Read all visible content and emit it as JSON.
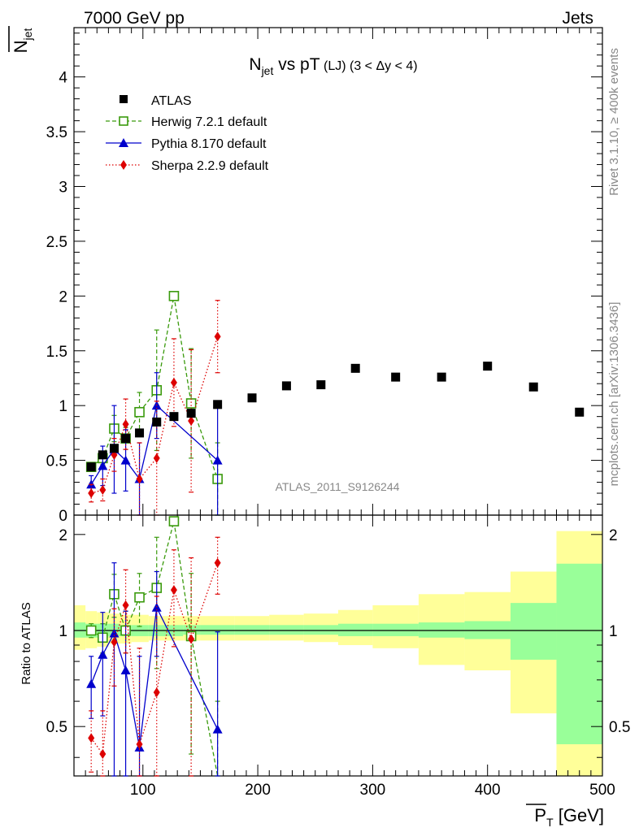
{
  "header": {
    "left": "7000 GeV pp",
    "right": "Jets"
  },
  "side_labels": {
    "rivet": "Rivet 3.1.10, ≥ 400k events",
    "mcplots": "mcplots.cern.ch [arXiv:1306.3436]"
  },
  "watermark": "ATLAS_2011_S9126244",
  "chart_data": [
    {
      "type": "scatter",
      "title": {
        "main": "N",
        "sub": "jet",
        "rest": " vs pT",
        "small": " (LJ) (3 < Δy < 4)"
      },
      "ylabel": {
        "main": "N",
        "sub": "jet"
      },
      "xlim": [
        40,
        500
      ],
      "ylim": [
        0,
        4.45
      ],
      "yticks": [
        "0",
        "0.5",
        "1",
        "1.5",
        "2",
        "2.5",
        "3",
        "3.5",
        "4"
      ],
      "legend": [
        "ATLAS",
        "Herwig 7.2.1 default",
        "Pythia 8.170 default",
        "Sherpa 2.2.9 default"
      ],
      "series": [
        {
          "name": "ATLAS",
          "color": "#000000",
          "marker": "square-filled",
          "x": [
            55,
            65,
            75,
            85,
            97,
            112,
            127,
            142,
            165,
            195,
            225,
            255,
            285,
            320,
            360,
            400,
            440,
            480
          ],
          "y": [
            0.44,
            0.55,
            0.61,
            0.7,
            0.75,
            0.85,
            0.9,
            0.93,
            1.01,
            1.07,
            1.18,
            1.19,
            1.34,
            1.26,
            1.26,
            1.36,
            1.17,
            0.94
          ]
        },
        {
          "name": "Herwig 7.2.1 default",
          "color": "#3a9a0c",
          "marker": "square-open",
          "line": "dashed",
          "x": [
            55,
            65,
            75,
            85,
            97,
            112,
            127,
            142,
            165
          ],
          "y": [
            0.44,
            0.52,
            0.79,
            0.7,
            0.94,
            1.14,
            2.0,
            1.02,
            0.33
          ],
          "yerr": [
            0.04,
            0.06,
            0.12,
            0.1,
            0.18,
            0.55,
            0.0,
            0.5,
            0.33
          ]
        },
        {
          "name": "Pythia 8.170 default",
          "color": "#0000cc",
          "marker": "triangle",
          "line": "solid",
          "x": [
            55,
            65,
            75,
            85,
            97,
            112,
            165
          ],
          "y": [
            0.28,
            0.45,
            0.6,
            0.5,
            0.33,
            1.0,
            0.5
          ],
          "yerr": [
            0.08,
            0.18,
            0.4,
            0.28,
            0.33,
            0.3,
            0.5
          ]
        },
        {
          "name": "Sherpa 2.2.9 default",
          "color": "#dd0000",
          "marker": "diamond",
          "line": "dotted",
          "x": [
            55,
            65,
            75,
            85,
            97,
            112,
            127,
            142,
            165
          ],
          "y": [
            0.2,
            0.23,
            0.55,
            0.83,
            0.33,
            0.52,
            1.21,
            0.86,
            1.63
          ],
          "yerr": [
            0.08,
            0.1,
            0.15,
            0.23,
            0.33,
            0.52,
            0.4,
            0.65,
            0.33
          ]
        }
      ]
    },
    {
      "type": "scatter",
      "ylabel": "Ratio to ATLAS",
      "xlabel": {
        "main": "P",
        "sub": "T",
        "rest": " [GeV]"
      },
      "xlim": [
        40,
        500
      ],
      "ylim": [
        0.35,
        2.3
      ],
      "xticks": [
        "100",
        "200",
        "300",
        "400",
        "500"
      ],
      "yticks": [
        "0.5",
        "1",
        "2"
      ],
      "band_bins": [
        40,
        50,
        60,
        70,
        80,
        90,
        105,
        120,
        135,
        150,
        180,
        210,
        240,
        270,
        300,
        340,
        380,
        420,
        460,
        500
      ],
      "band_green": [
        [
          0.95,
          1.06
        ],
        [
          0.95,
          1.05
        ],
        [
          0.95,
          1.05
        ],
        [
          0.96,
          1.05
        ],
        [
          0.96,
          1.04
        ],
        [
          0.96,
          1.04
        ],
        [
          0.96,
          1.04
        ],
        [
          0.96,
          1.04
        ],
        [
          0.97,
          1.04
        ],
        [
          0.97,
          1.04
        ],
        [
          0.97,
          1.04
        ],
        [
          0.97,
          1.04
        ],
        [
          0.97,
          1.04
        ],
        [
          0.96,
          1.05
        ],
        [
          0.96,
          1.05
        ],
        [
          0.95,
          1.06
        ],
        [
          0.94,
          1.07
        ],
        [
          0.81,
          1.22
        ],
        [
          0.44,
          1.62
        ]
      ],
      "band_yellow": [
        [
          0.87,
          1.2
        ],
        [
          0.88,
          1.15
        ],
        [
          0.89,
          1.14
        ],
        [
          0.91,
          1.13
        ],
        [
          0.91,
          1.12
        ],
        [
          0.92,
          1.12
        ],
        [
          0.93,
          1.11
        ],
        [
          0.93,
          1.11
        ],
        [
          0.93,
          1.11
        ],
        [
          0.93,
          1.11
        ],
        [
          0.93,
          1.11
        ],
        [
          0.93,
          1.12
        ],
        [
          0.92,
          1.13
        ],
        [
          0.9,
          1.16
        ],
        [
          0.88,
          1.2
        ],
        [
          0.78,
          1.3
        ],
        [
          0.75,
          1.32
        ],
        [
          0.55,
          1.53
        ],
        [
          0.35,
          2.05
        ]
      ],
      "series": [
        {
          "name": "Herwig 7.2.1 default",
          "color": "#3a9a0c",
          "marker": "square-open",
          "line": "dashed",
          "x": [
            55,
            65,
            75,
            85,
            97,
            112,
            127,
            142,
            165
          ],
          "y": [
            1.0,
            0.95,
            1.3,
            1.0,
            1.27,
            1.36,
            2.2,
            0.96,
            0.3
          ],
          "yerr": [
            0.05,
            0.1,
            0.2,
            0.15,
            0.24,
            0.6,
            0.0,
            0.55,
            0.3
          ]
        },
        {
          "name": "Pythia 8.170 default",
          "color": "#0000cc",
          "marker": "triangle",
          "line": "solid",
          "x": [
            55,
            65,
            75,
            85,
            97,
            112,
            165
          ],
          "y": [
            0.68,
            0.84,
            0.98,
            0.75,
            0.43,
            1.18,
            0.49
          ],
          "yerr": [
            0.15,
            0.3,
            0.65,
            0.4,
            0.4,
            0.35,
            0.5
          ]
        },
        {
          "name": "Sherpa 2.2.9 default",
          "color": "#dd0000",
          "marker": "diamond",
          "line": "dotted",
          "x": [
            55,
            65,
            75,
            85,
            97,
            112,
            127,
            142,
            165
          ],
          "y": [
            0.46,
            0.41,
            0.92,
            1.2,
            0.44,
            0.64,
            1.34,
            0.94,
            1.63
          ],
          "yerr": [
            0.1,
            0.15,
            0.25,
            0.35,
            0.44,
            0.64,
            0.45,
            0.75,
            0.33
          ]
        }
      ]
    }
  ]
}
